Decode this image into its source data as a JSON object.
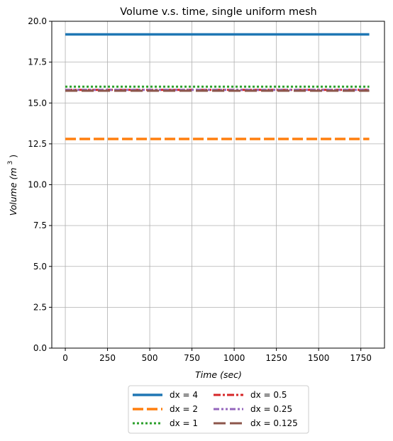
{
  "chart_data": {
    "type": "line",
    "title": "Volume v.s. time, single uniform mesh",
    "xlabel": "Time",
    "xlabel_unit": "(sec)",
    "ylabel": "Volume",
    "ylabel_unit_base": "(m",
    "ylabel_unit_exp": "3",
    "ylabel_unit_close": ")",
    "xlim": [
      -80,
      1890
    ],
    "ylim": [
      0,
      20
    ],
    "x_ticks": [
      0,
      250,
      500,
      750,
      1000,
      1250,
      1500,
      1750
    ],
    "y_ticks": [
      "0.0",
      "2.5",
      "5.0",
      "7.5",
      "10.0",
      "12.5",
      "15.0",
      "17.5",
      "20.0"
    ],
    "grid": true,
    "legend_position": "below the plot, centered, 2 columns",
    "series": [
      {
        "name": "dx = 4",
        "x": [
          0,
          1800
        ],
        "y": [
          19.2,
          19.2
        ],
        "color": "#1f77b4",
        "style": "solid"
      },
      {
        "name": "dx = 2",
        "x": [
          0,
          1800
        ],
        "y": [
          12.8,
          12.8
        ],
        "color": "#ff7f0e",
        "style": "dashed"
      },
      {
        "name": "dx = 1",
        "x": [
          0,
          1800
        ],
        "y": [
          16.0,
          16.0
        ],
        "color": "#2ca02c",
        "style": "dotted"
      },
      {
        "name": "dx = 0.5",
        "x": [
          0,
          1800
        ],
        "y": [
          15.8,
          15.8
        ],
        "color": "#d62728",
        "style": "dashdot"
      },
      {
        "name": "dx = 0.25",
        "x": [
          0,
          1800
        ],
        "y": [
          15.8,
          15.8
        ],
        "color": "#9467bd",
        "style": "dashdotdot"
      },
      {
        "name": "dx = 0.125",
        "x": [
          0,
          1800
        ],
        "y": [
          15.75,
          15.75
        ],
        "color": "#8c564b",
        "style": "longdash"
      }
    ]
  }
}
